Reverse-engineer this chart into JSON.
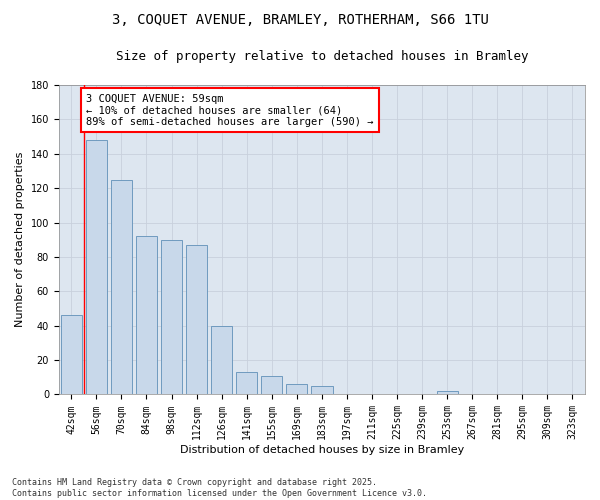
{
  "title_line1": "3, COQUET AVENUE, BRAMLEY, ROTHERHAM, S66 1TU",
  "title_line2": "Size of property relative to detached houses in Bramley",
  "xlabel": "Distribution of detached houses by size in Bramley",
  "ylabel": "Number of detached properties",
  "categories": [
    "42sqm",
    "56sqm",
    "70sqm",
    "84sqm",
    "98sqm",
    "112sqm",
    "126sqm",
    "141sqm",
    "155sqm",
    "169sqm",
    "183sqm",
    "197sqm",
    "211sqm",
    "225sqm",
    "239sqm",
    "253sqm",
    "267sqm",
    "281sqm",
    "295sqm",
    "309sqm",
    "323sqm"
  ],
  "values": [
    46,
    148,
    125,
    92,
    90,
    87,
    40,
    13,
    11,
    6,
    5,
    0,
    0,
    0,
    0,
    2,
    0,
    0,
    0,
    0,
    0
  ],
  "bar_color": "#c8d8ea",
  "bar_edge_color": "#6090b8",
  "grid_color": "#c8d0dc",
  "background_color": "#dde6f0",
  "annotation_text": "3 COQUET AVENUE: 59sqm\n← 10% of detached houses are smaller (64)\n89% of semi-detached houses are larger (590) →",
  "vline_x_index": 1,
  "ylim": [
    0,
    180
  ],
  "yticks": [
    0,
    20,
    40,
    60,
    80,
    100,
    120,
    140,
    160,
    180
  ],
  "footnote": "Contains HM Land Registry data © Crown copyright and database right 2025.\nContains public sector information licensed under the Open Government Licence v3.0.",
  "title_fontsize": 10,
  "subtitle_fontsize": 9,
  "axis_label_fontsize": 8,
  "tick_fontsize": 7,
  "annotation_fontsize": 7.5
}
